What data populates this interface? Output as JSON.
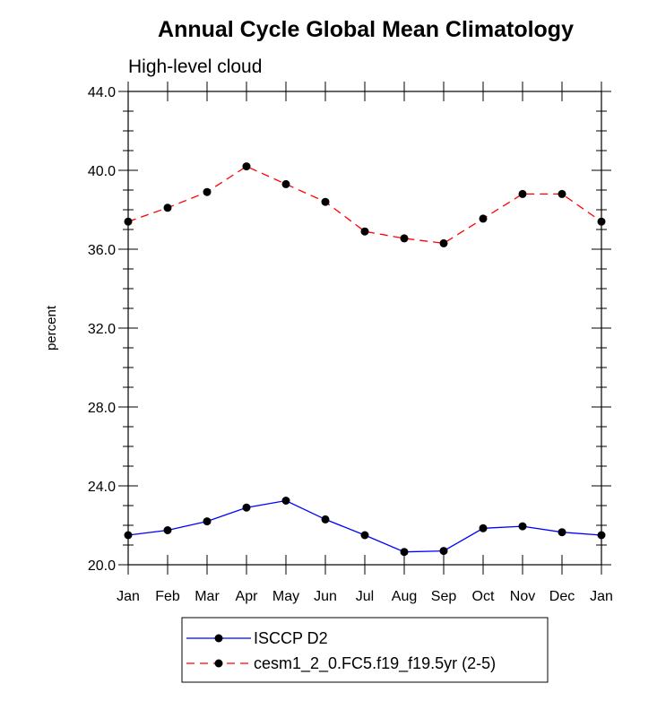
{
  "chart_data": {
    "type": "line",
    "title": "Annual Cycle Global Mean Climatology",
    "subtitle": "High-level cloud",
    "xlabel": "",
    "ylabel": "percent",
    "ylim": [
      20.0,
      44.0
    ],
    "yticks": [
      "20.0",
      "24.0",
      "28.0",
      "32.0",
      "36.0",
      "40.0",
      "44.0"
    ],
    "categories": [
      "Jan",
      "Feb",
      "Mar",
      "Apr",
      "May",
      "Jun",
      "Jul",
      "Aug",
      "Sep",
      "Oct",
      "Nov",
      "Dec",
      "Jan"
    ],
    "grid": false,
    "legend_position": "bottom",
    "series": [
      {
        "name": "ISCCP D2",
        "color": "#0000ff",
        "dash": "solid",
        "values": [
          21.5,
          21.75,
          22.2,
          22.9,
          23.25,
          22.3,
          21.5,
          20.65,
          20.7,
          21.85,
          21.95,
          21.65,
          21.5
        ]
      },
      {
        "name": "cesm1_2_0.FC5.f19_f19.5yr (2-5)",
        "color": "#ff0000",
        "dash": "dashed",
        "values": [
          37.4,
          38.1,
          38.9,
          40.2,
          39.3,
          38.4,
          36.9,
          36.55,
          36.3,
          37.55,
          38.8,
          38.8,
          37.4
        ]
      }
    ]
  }
}
